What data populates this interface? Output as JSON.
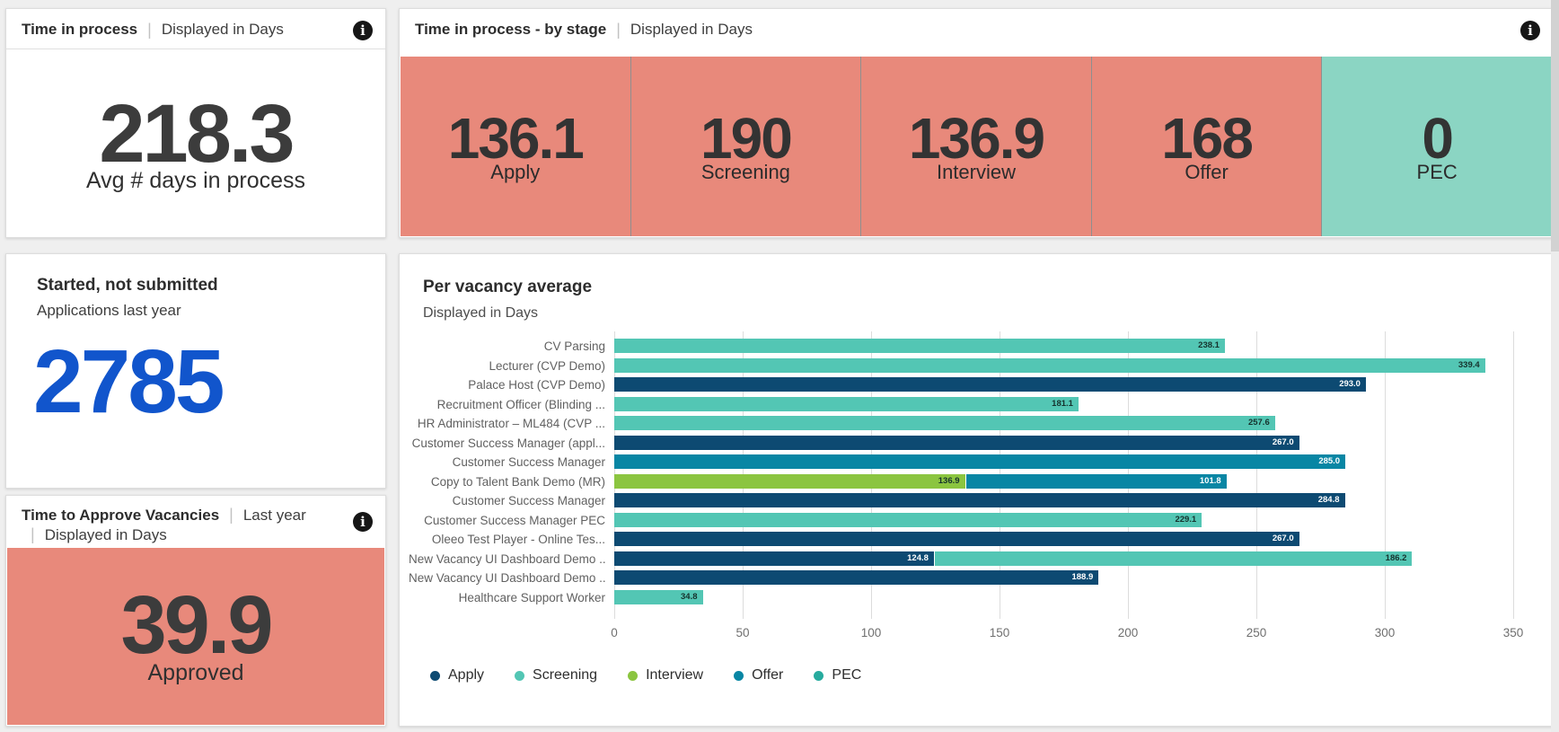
{
  "page": {
    "background": "#efefef"
  },
  "widgets": {
    "time_in_process": {
      "title": "Time in process",
      "separator": "|",
      "subtitle": "Displayed in Days",
      "info_icon": "i",
      "value": "218.3",
      "caption": "Avg # days in process"
    },
    "by_stage": {
      "title": "Time in process - by stage",
      "separator": "|",
      "subtitle": "Displayed in Days",
      "info_icon": "i",
      "tiles": [
        {
          "value": "136.1",
          "label": "Apply",
          "bg": "#E8897B"
        },
        {
          "value": "190",
          "label": "Screening",
          "bg": "#E8897B"
        },
        {
          "value": "136.9",
          "label": "Interview",
          "bg": "#E8897B"
        },
        {
          "value": "168",
          "label": "Offer",
          "bg": "#E8897B"
        },
        {
          "value": "0",
          "label": "PEC",
          "bg": "#8BD5C3"
        }
      ]
    },
    "started_not_submitted": {
      "title": "Started, not submitted",
      "subtitle": "Applications last year",
      "value": "2785",
      "value_color": "#1155CC"
    },
    "time_to_approve": {
      "title": "Time to Approve Vacancies",
      "separator": "|",
      "subtitle_1": "Last year",
      "subtitle_2": "Displayed in Days",
      "info_icon": "i",
      "value": "39.9",
      "caption": "Approved",
      "bg": "#E8897B"
    }
  },
  "chart_data": {
    "type": "bar",
    "orientation": "horizontal",
    "title": "Per vacancy average",
    "subtitle": "Displayed in Days",
    "xlim": [
      0,
      350
    ],
    "xticks": [
      0,
      50,
      100,
      150,
      200,
      250,
      300,
      350
    ],
    "grid": "vertical",
    "legend_position": "bottom",
    "legend": [
      {
        "name": "Apply",
        "color": "#0D4A72"
      },
      {
        "name": "Screening",
        "color": "#53C6B4"
      },
      {
        "name": "Interview",
        "color": "#8BC540"
      },
      {
        "name": "Offer",
        "color": "#0886A4"
      },
      {
        "name": "PEC",
        "color": "#27AB9E"
      }
    ],
    "rows": [
      {
        "label": "CV Parsing",
        "segments": [
          {
            "series": "Screening",
            "value": 238.1,
            "display": "238.1"
          }
        ]
      },
      {
        "label": "Lecturer (CVP Demo)",
        "segments": [
          {
            "series": "Screening",
            "value": 339.4,
            "display": "339.4"
          }
        ]
      },
      {
        "label": "Palace Host (CVP Demo)",
        "segments": [
          {
            "series": "Apply",
            "value": 293.0,
            "display": "293.0"
          }
        ]
      },
      {
        "label": "Recruitment Officer (Blinding ...",
        "segments": [
          {
            "series": "Screening",
            "value": 181.1,
            "display": "181.1"
          }
        ]
      },
      {
        "label": "HR Administrator – ML484 (CVP ...",
        "segments": [
          {
            "series": "Screening",
            "value": 257.6,
            "display": "257.6"
          }
        ]
      },
      {
        "label": "Customer Success Manager (appl...",
        "segments": [
          {
            "series": "Apply",
            "value": 267.0,
            "display": "267.0"
          }
        ]
      },
      {
        "label": "Customer Success Manager",
        "segments": [
          {
            "series": "Offer",
            "value": 285.0,
            "display": "285.0"
          }
        ]
      },
      {
        "label": "Copy to Talent Bank Demo (MR)",
        "segments": [
          {
            "series": "Interview",
            "value": 136.9,
            "display": "136.9"
          },
          {
            "series": "Offer",
            "value": 101.8,
            "display": "101.8"
          }
        ]
      },
      {
        "label": "Customer Success Manager",
        "segments": [
          {
            "series": "Apply",
            "value": 284.8,
            "display": "284.8"
          }
        ]
      },
      {
        "label": "Customer Success Manager PEC",
        "segments": [
          {
            "series": "Screening",
            "value": 229.1,
            "display": "229.1"
          }
        ]
      },
      {
        "label": "Oleeo Test Player - Online Tes...",
        "segments": [
          {
            "series": "Apply",
            "value": 267.0,
            "display": "267.0"
          }
        ]
      },
      {
        "label": "New Vacancy UI Dashboard Demo ...",
        "segments": [
          {
            "series": "Apply",
            "value": 124.8,
            "display": "124.8"
          },
          {
            "series": "Screening",
            "value": 186.2,
            "display": "186.2"
          }
        ]
      },
      {
        "label": "New Vacancy UI Dashboard Demo ...",
        "segments": [
          {
            "series": "Apply",
            "value": 188.9,
            "display": "188.9"
          }
        ]
      },
      {
        "label": "Healthcare Support Worker",
        "segments": [
          {
            "series": "Screening",
            "value": 34.8,
            "display": "34.8"
          }
        ]
      }
    ]
  }
}
